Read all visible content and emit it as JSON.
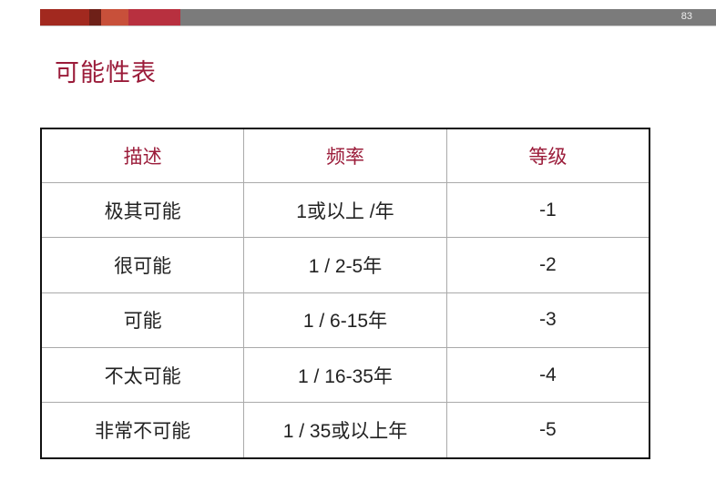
{
  "header": {
    "page_number": "83",
    "colors": [
      "#a2291f",
      "#6e2018",
      "#c8503a",
      "#b8303f",
      "#7b7b7b"
    ]
  },
  "title": "可能性表",
  "table": {
    "headers": [
      "描述",
      "频率",
      "等级"
    ],
    "rows": [
      [
        "极其可能",
        "1或以上 /年",
        "-1"
      ],
      [
        "很可能",
        "1 / 2-5年",
        "-2"
      ],
      [
        "可能",
        "1 / 6-15年",
        "-3"
      ],
      [
        "不太可能",
        "1 / 16-35年",
        "-4"
      ],
      [
        "非常不可能",
        "1 / 35或以上年",
        "-5"
      ]
    ]
  }
}
